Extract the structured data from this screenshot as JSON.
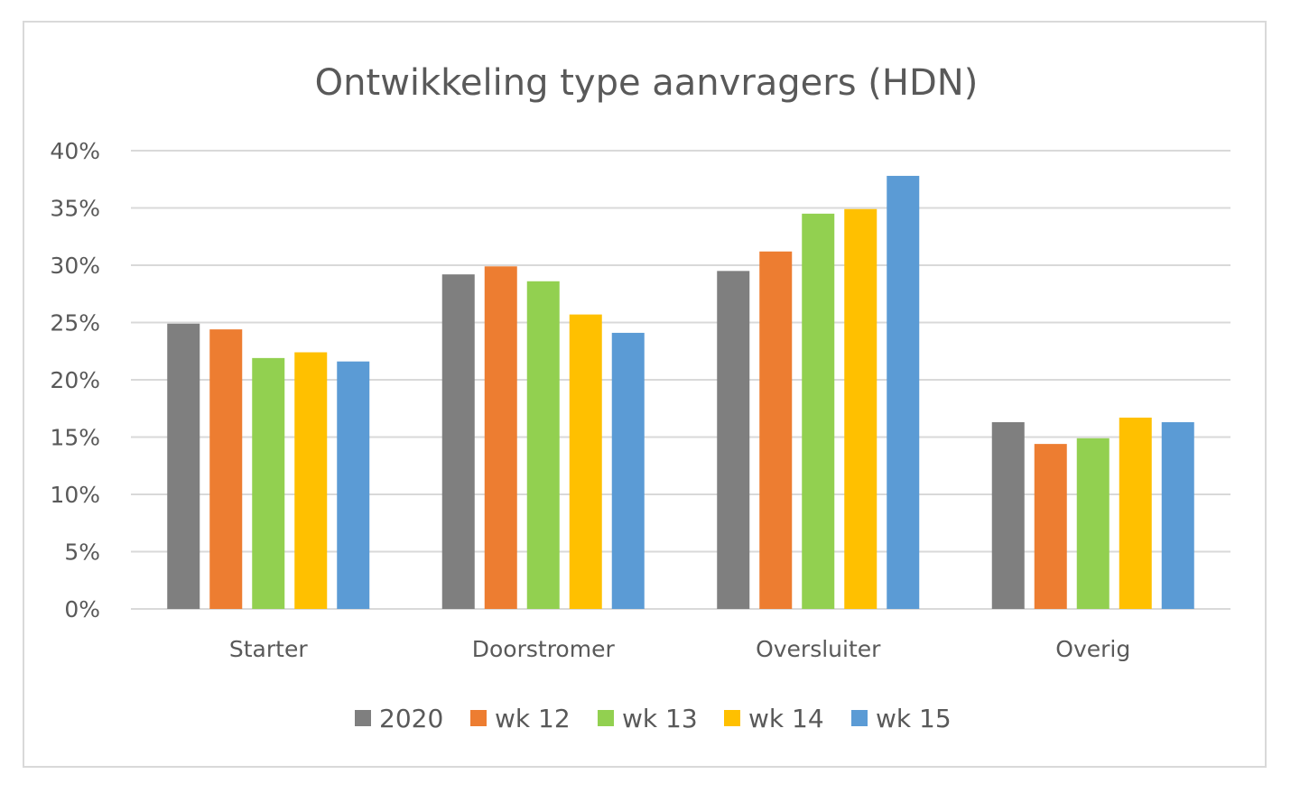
{
  "chart_data": {
    "type": "bar",
    "title": "Ontwikkeling type aanvragers (HDN)",
    "xlabel": "",
    "ylabel": "",
    "categories": [
      "Starter",
      "Doorstromer",
      "Oversluiter",
      "Overig"
    ],
    "series": [
      {
        "name": "2020",
        "color": "#7f7f7f",
        "values": [
          24.9,
          29.2,
          29.5,
          16.3
        ]
      },
      {
        "name": "wk 12",
        "color": "#ed7d31",
        "values": [
          24.4,
          29.9,
          31.2,
          14.4
        ]
      },
      {
        "name": "wk 13",
        "color": "#92d050",
        "values": [
          21.9,
          28.6,
          34.5,
          14.9
        ]
      },
      {
        "name": "wk 14",
        "color": "#ffc000",
        "values": [
          22.4,
          25.7,
          34.9,
          16.7
        ]
      },
      {
        "name": "wk 15",
        "color": "#5b9bd5",
        "values": [
          21.6,
          24.1,
          37.8,
          16.3
        ]
      }
    ],
    "ylim": [
      0,
      40
    ],
    "yticks": [
      "0%",
      "5%",
      "10%",
      "15%",
      "20%",
      "25%",
      "30%",
      "35%",
      "40%"
    ],
    "grid": true,
    "legend": "bottom"
  }
}
